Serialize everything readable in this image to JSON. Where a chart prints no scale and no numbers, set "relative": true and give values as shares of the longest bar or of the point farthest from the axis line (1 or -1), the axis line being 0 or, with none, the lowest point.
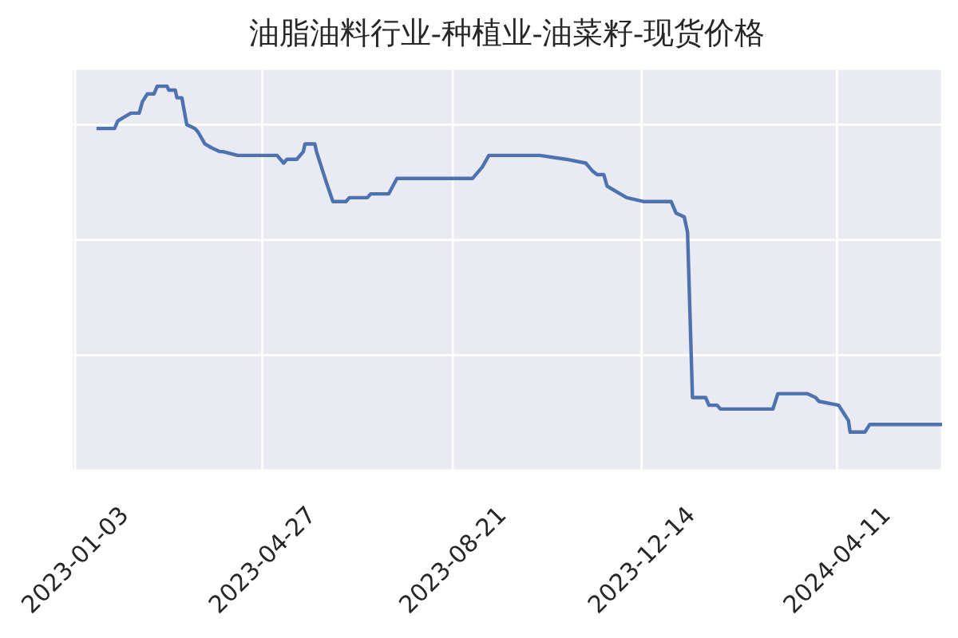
{
  "chart_data": {
    "type": "line",
    "title": "油脂油料行业-种植业-油菜籽-现货价格",
    "relative": true,
    "x": [
      "2023-01-16",
      "2023-01-27",
      "2023-01-29",
      "2023-02-02",
      "2023-02-06",
      "2023-02-11",
      "2023-02-13",
      "2023-02-16",
      "2023-02-20",
      "2023-02-22",
      "2023-02-28",
      "2023-03-01",
      "2023-03-05",
      "2023-03-06",
      "2023-03-09",
      "2023-03-12",
      "2023-03-17",
      "2023-03-19",
      "2023-03-23",
      "2023-03-27",
      "2023-04-01",
      "2023-04-03",
      "2023-04-12",
      "2023-04-14",
      "2023-05-06",
      "2023-05-10",
      "2023-05-12",
      "2023-05-18",
      "2023-05-22",
      "2023-05-23",
      "2023-05-29",
      "2023-05-30",
      "2023-06-05",
      "2023-06-09",
      "2023-06-17",
      "2023-06-19",
      "2023-06-30",
      "2023-07-02",
      "2023-07-13",
      "2023-07-18",
      "2023-07-27",
      "2023-07-29",
      "2023-09-02",
      "2023-09-08",
      "2023-09-12",
      "2023-10-13",
      "2023-10-29",
      "2023-11-10",
      "2023-11-14",
      "2023-11-17",
      "2023-11-21",
      "2023-11-23",
      "2023-11-27",
      "2023-12-01",
      "2023-12-05",
      "2023-12-15",
      "2023-12-24",
      "2024-01-01",
      "2024-01-04",
      "2024-01-09",
      "2024-01-11",
      "2024-01-14",
      "2024-01-22",
      "2024-01-24",
      "2024-01-29",
      "2024-01-31",
      "2024-03-03",
      "2024-03-06",
      "2024-03-24",
      "2024-03-29",
      "2024-03-31",
      "2024-04-12",
      "2024-04-15",
      "2024-04-18",
      "2024-04-19",
      "2024-04-28",
      "2024-05-01",
      "2024-06-14"
    ],
    "series": [
      {
        "color": "#4c72b0",
        "values": [
          0.89,
          0.89,
          0.91,
          0.92,
          0.93,
          0.93,
          0.96,
          0.98,
          0.98,
          1,
          1,
          0.99,
          0.99,
          0.97,
          0.97,
          0.9,
          0.89,
          0.88,
          0.85,
          0.84,
          0.83,
          0.83,
          0.82,
          0.82,
          0.82,
          0.8,
          0.81,
          0.81,
          0.83,
          0.85,
          0.85,
          0.83,
          0.75,
          0.7,
          0.7,
          0.71,
          0.71,
          0.72,
          0.72,
          0.76,
          0.76,
          0.76,
          0.76,
          0.79,
          0.82,
          0.82,
          0.81,
          0.8,
          0.78,
          0.77,
          0.77,
          0.74,
          0.73,
          0.72,
          0.71,
          0.7,
          0.7,
          0.7,
          0.67,
          0.66,
          0.62,
          0.19,
          0.19,
          0.17,
          0.17,
          0.16,
          0.16,
          0.2,
          0.2,
          0.19,
          0.18,
          0.17,
          0.15,
          0.13,
          0.1,
          0.1,
          0.12,
          0.12
        ]
      }
    ],
    "xlim": [
      "2023-01-01",
      "2024-06-14"
    ],
    "xticks": [
      "2023-01-03",
      "2023-04-27",
      "2023-08-21",
      "2023-12-14",
      "2024-04-11"
    ],
    "grid": true
  }
}
